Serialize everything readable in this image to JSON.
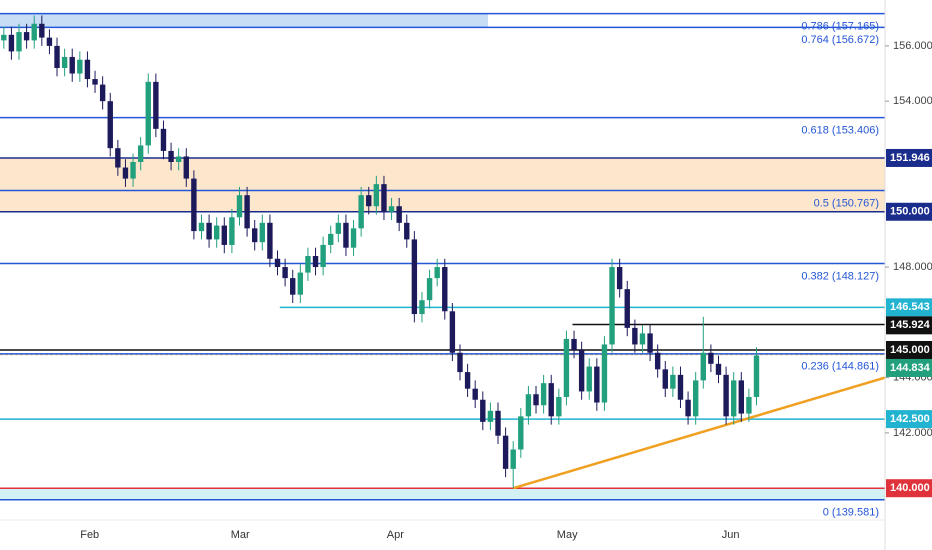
{
  "chart_data": {
    "type": "candlestick",
    "xlim": [
      -0.5,
      115.9
    ],
    "ylim": [
      138.85,
      157.66
    ],
    "xticks": [
      {
        "value": 11.3,
        "label": "Feb"
      },
      {
        "value": 31.1,
        "label": "Mar"
      },
      {
        "value": 51.5,
        "label": "Apr"
      },
      {
        "value": 74.1,
        "label": "May"
      },
      {
        "value": 95.6,
        "label": "Jun"
      }
    ],
    "yticks": [
      {
        "value": 156,
        "label": "156.000"
      },
      {
        "value": 154,
        "label": "154.000"
      },
      {
        "value": 148,
        "label": "148.000"
      },
      {
        "value": 144,
        "label": "144.000"
      },
      {
        "value": 142,
        "label": "142.000"
      }
    ],
    "up_color": "#22a07e",
    "down_color": "#1d1a5c",
    "open": [
      156.2,
      156.4,
      155.8,
      156.5,
      156.2,
      156.8,
      156.3,
      156.0,
      155.2,
      155.6,
      155.0,
      155.5,
      154.8,
      154.6,
      154.0,
      152.3,
      151.6,
      151.2,
      151.8,
      152.4,
      154.7,
      153.0,
      152.2,
      151.8,
      152.0,
      151.2,
      149.3,
      149.6,
      149.0,
      149.5,
      148.8,
      149.8,
      150.6,
      149.4,
      148.9,
      149.6,
      148.3,
      148.0,
      147.6,
      147.0,
      147.8,
      148.4,
      148.0,
      148.8,
      149.2,
      149.6,
      148.7,
      149.4,
      150.6,
      150.2,
      151.0,
      150.0,
      150.2,
      149.6,
      149.0,
      146.3,
      146.8,
      147.6,
      148.0,
      146.4,
      144.9,
      144.2,
      143.6,
      143.2,
      142.4,
      142.8,
      141.9,
      140.7,
      141.4,
      142.6,
      143.4,
      143.0,
      143.8,
      142.6,
      143.3,
      145.4,
      145.0,
      143.5,
      144.4,
      143.1,
      145.2,
      148.0,
      147.2,
      145.8,
      145.2,
      145.6,
      144.9,
      144.3,
      143.6,
      144.1,
      143.2,
      142.6,
      143.9,
      144.9,
      144.5,
      144.1,
      142.6,
      143.9,
      142.7,
      143.3
    ],
    "high": [
      156.7,
      156.7,
      156.8,
      156.8,
      157.1,
      157.1,
      156.6,
      156.3,
      155.9,
      155.9,
      155.8,
      155.8,
      155.1,
      154.9,
      154.3,
      152.6,
      151.9,
      152.1,
      152.7,
      155.0,
      155.0,
      153.3,
      152.5,
      152.3,
      152.3,
      151.5,
      149.9,
      149.9,
      149.8,
      149.8,
      150.1,
      150.9,
      150.9,
      149.7,
      149.9,
      149.9,
      148.6,
      148.3,
      147.9,
      148.1,
      148.7,
      148.7,
      149.1,
      149.5,
      149.9,
      149.9,
      149.7,
      150.9,
      150.9,
      151.3,
      151.3,
      150.5,
      150.5,
      149.9,
      149.3,
      147.1,
      147.9,
      148.3,
      148.3,
      146.7,
      145.2,
      144.5,
      143.9,
      143.5,
      143.1,
      143.1,
      142.2,
      141.7,
      142.9,
      143.7,
      143.7,
      144.1,
      144.1,
      143.6,
      145.7,
      145.7,
      145.3,
      144.7,
      144.7,
      145.5,
      148.3,
      148.3,
      147.5,
      146.1,
      145.9,
      145.9,
      145.2,
      144.6,
      144.4,
      144.4,
      143.5,
      144.2,
      146.2,
      145.2,
      144.8,
      144.4,
      144.2,
      144.2,
      143.6,
      145.1
    ],
    "low": [
      155.9,
      155.5,
      155.5,
      155.9,
      155.9,
      156.0,
      155.7,
      154.9,
      154.9,
      154.7,
      154.7,
      154.5,
      154.3,
      153.7,
      152.0,
      151.3,
      150.9,
      150.9,
      151.5,
      152.1,
      152.7,
      151.9,
      151.5,
      151.5,
      150.9,
      149.0,
      149.0,
      148.7,
      148.7,
      148.5,
      148.5,
      149.5,
      149.1,
      148.6,
      148.6,
      148.0,
      147.7,
      147.3,
      146.7,
      146.7,
      147.5,
      147.7,
      147.7,
      148.5,
      148.9,
      148.4,
      148.4,
      149.1,
      149.9,
      149.9,
      149.7,
      149.7,
      149.3,
      148.7,
      146.0,
      146.0,
      146.5,
      147.3,
      146.1,
      144.6,
      143.9,
      143.3,
      142.9,
      142.1,
      142.1,
      141.6,
      140.4,
      140.0,
      141.1,
      142.3,
      142.7,
      142.7,
      142.3,
      142.3,
      143.0,
      144.7,
      143.2,
      143.2,
      142.8,
      142.8,
      144.9,
      146.9,
      145.5,
      144.9,
      144.9,
      144.6,
      144.0,
      143.3,
      143.3,
      142.9,
      142.3,
      142.3,
      143.6,
      144.2,
      143.8,
      142.3,
      142.3,
      142.4,
      142.4,
      143.0
    ],
    "close": [
      156.4,
      155.8,
      156.5,
      156.2,
      156.8,
      156.3,
      156.0,
      155.2,
      155.6,
      155.0,
      155.5,
      154.8,
      154.6,
      154.0,
      152.3,
      151.6,
      151.2,
      151.8,
      152.4,
      154.7,
      153.0,
      152.2,
      151.8,
      152.0,
      151.2,
      149.3,
      149.6,
      149.0,
      149.5,
      148.8,
      149.8,
      150.6,
      149.4,
      148.9,
      149.6,
      148.3,
      148.0,
      147.6,
      147.0,
      147.8,
      148.4,
      148.0,
      148.8,
      149.2,
      149.6,
      148.7,
      149.4,
      150.6,
      150.2,
      151.0,
      150.0,
      150.2,
      149.6,
      149.0,
      146.3,
      146.8,
      147.6,
      148.0,
      146.4,
      144.9,
      144.2,
      143.6,
      143.2,
      142.4,
      142.8,
      141.9,
      140.7,
      141.4,
      142.6,
      143.4,
      143.0,
      143.8,
      142.6,
      143.3,
      145.4,
      145.0,
      143.5,
      144.4,
      143.1,
      145.2,
      148.0,
      147.2,
      145.8,
      145.2,
      145.6,
      144.9,
      144.3,
      143.6,
      144.1,
      143.2,
      142.6,
      143.9,
      144.9,
      144.5,
      144.1,
      142.6,
      143.9,
      142.7,
      143.3,
      144.8
    ],
    "fib_color": "#2457d6",
    "fib_levels": [
      {
        "value": 157.165,
        "label": "0.786 (157.165)"
      },
      {
        "value": 156.672,
        "label": "0.764 (156.672)"
      },
      {
        "value": 153.406,
        "label": "0.618 (153.406)"
      },
      {
        "value": 150.767,
        "label": "0.5 (150.767)"
      },
      {
        "value": 148.127,
        "label": "0.382 (148.127)"
      },
      {
        "value": 144.861,
        "label": "0.236 (144.861)"
      },
      {
        "value": 139.581,
        "label": "0 (139.581)"
      }
    ],
    "price_levels": [
      {
        "value": 151.946,
        "label": "151.946",
        "color": "#1a2d8c"
      },
      {
        "value": 150.0,
        "label": "150.000",
        "color": "#1a2d8c"
      },
      {
        "value": 146.543,
        "label": "146.543",
        "color": "#22b3d0",
        "x_start": 36.3
      },
      {
        "value": 145.924,
        "label": "145.924",
        "color": "#111111",
        "x_start": 74.8
      },
      {
        "value": 145.0,
        "label": "145.000",
        "color": "#111111"
      },
      {
        "value": 144.834,
        "label": "144.834",
        "color": "#22a07e",
        "dashed": true
      },
      {
        "value": 142.5,
        "label": "142.500",
        "color": "#22b3d0"
      },
      {
        "value": 140.0,
        "label": "140.000",
        "color": "#e0323a"
      }
    ],
    "trendline": {
      "x": [
        67,
        115.9
      ],
      "y": [
        140.0,
        144.0
      ],
      "color": "#f0a020"
    }
  }
}
